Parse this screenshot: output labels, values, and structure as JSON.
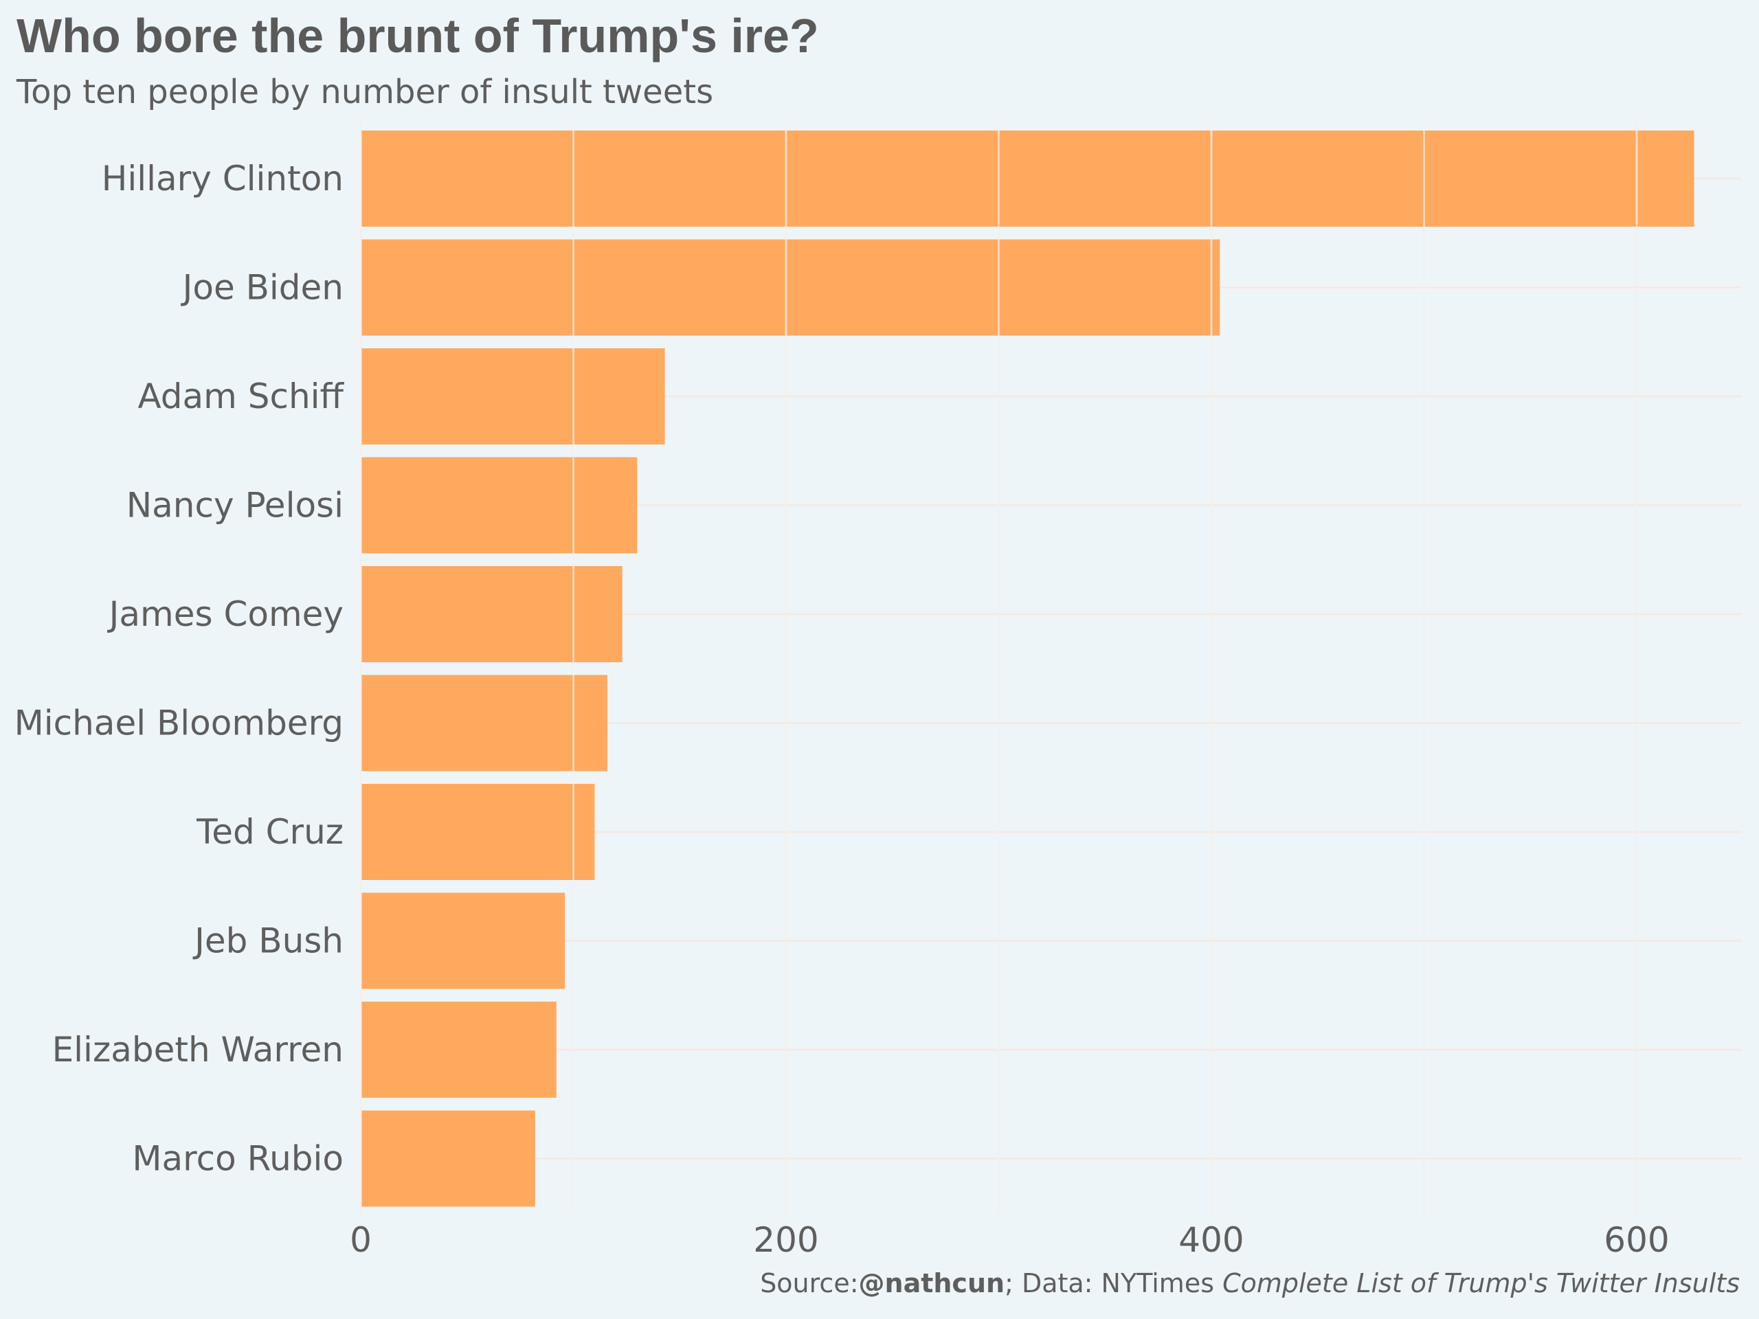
{
  "header": {
    "title": "Who bore the brunt of Trump's ire?",
    "subtitle": "Top ten people by number of insult tweets"
  },
  "caption": {
    "source_prefix": "Source:",
    "source_handle": "@nathcun",
    "data_prefix": "; Data: NYTimes ",
    "data_title": "Complete List of Trump's Twitter Insults"
  },
  "colors": {
    "background": "#eef5f8",
    "bar": "#ffa95f",
    "grid_major": "#f5e9e6",
    "grid_minor": "#f3f1ef",
    "text": "#5a5a5a"
  },
  "chart_data": {
    "type": "bar",
    "orientation": "horizontal",
    "title": "Who bore the brunt of Trump's ire?",
    "subtitle": "Top ten people by number of insult tweets",
    "xlabel": "",
    "ylabel": "",
    "categories": [
      "Hillary Clinton",
      "Joe Biden",
      "Adam Schiff",
      "Nancy Pelosi",
      "James Comey",
      "Michael Bloomberg",
      "Ted Cruz",
      "Jeb Bush",
      "Elizabeth Warren",
      "Marco Rubio"
    ],
    "values": [
      627,
      404,
      143,
      130,
      123,
      116,
      110,
      96,
      92,
      82
    ],
    "xlim": [
      0,
      650
    ],
    "xticks": [
      0,
      200,
      400,
      600
    ],
    "xtick_labels": [
      "0",
      "200",
      "400",
      "600"
    ],
    "grid": true,
    "legend": "none"
  }
}
